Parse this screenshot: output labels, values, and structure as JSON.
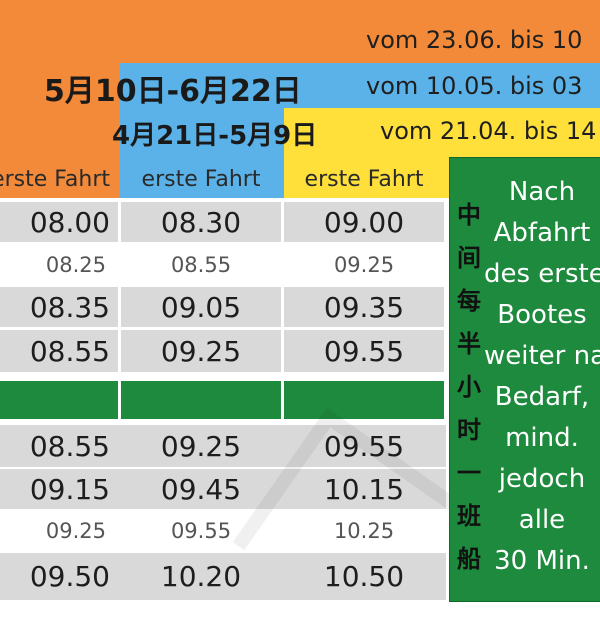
{
  "headers": {
    "orange_period": "vom 23.06. bis 10",
    "blue_period_cn": "5月10日-6月22日",
    "blue_period_de": "vom 10.05. bis 03",
    "yellow_period_cn": "4月21日-5月9日",
    "yellow_period_de": "vom 21.04. bis 14"
  },
  "columns": [
    "erste Fahrt",
    "erste Fahrt",
    "erste Fahrt"
  ],
  "block1": [
    {
      "cells": [
        "08.00",
        "08.30",
        "09.00"
      ],
      "style": "big"
    },
    {
      "cells": [
        "08.25",
        "08.55",
        "09.25"
      ],
      "style": "small"
    },
    {
      "cells": [
        "08.35",
        "09.05",
        "09.35"
      ],
      "style": "big"
    },
    {
      "cells": [
        "08.55",
        "09.25",
        "09.55"
      ],
      "style": "big"
    }
  ],
  "block2": [
    {
      "cells": [
        "08.55",
        "09.25",
        "09.55"
      ],
      "style": "big"
    },
    {
      "cells": [
        "09.15",
        "09.45",
        "10.15"
      ],
      "style": "big"
    },
    {
      "cells": [
        "09.25",
        "09.55",
        "10.25"
      ],
      "style": "small"
    },
    {
      "cells": [
        "09.50",
        "10.20",
        "10.50"
      ],
      "style": "big"
    }
  ],
  "note": {
    "vertical_cn": [
      "中",
      "间",
      "每",
      "半",
      "小",
      "时",
      "一",
      "班",
      "船"
    ],
    "lines": [
      "Nach",
      "Abfahrt",
      "des erste",
      "Bootes",
      "weiter nac",
      "Bedarf,",
      "mind.",
      "jedoch",
      "alle",
      "30 Min."
    ]
  },
  "colors": {
    "orange": "#f28a3a",
    "blue": "#5ab2e8",
    "yellow": "#ffe03a",
    "green": "#1e8a3e",
    "gray_row": "#d9d9d9"
  }
}
